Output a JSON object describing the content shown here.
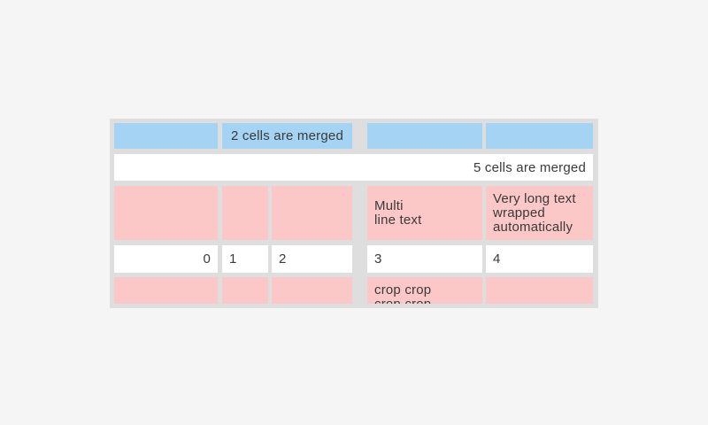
{
  "colors": {
    "page_background": "#f5f5f5",
    "table_background": "#dedede",
    "blue_cell": "#a5d3f4",
    "pink_cell": "#fbc8c7",
    "white_cell": "#ffffff",
    "text": "#3a3a3a"
  },
  "table": {
    "row1": {
      "merged_cell_label": "2 cells are merged"
    },
    "row2": {
      "merged_cell_label": "5 cells are merged"
    },
    "row3": {
      "multiline_cell": "Multi\nline text",
      "wrapped_cell": "Very long text\nwrapped\nautomatically"
    },
    "row4": {
      "cells": [
        "0",
        "1",
        "2",
        "3",
        "4"
      ]
    },
    "row5": {
      "cropped_cell": "crop crop\ncrop crop"
    }
  }
}
